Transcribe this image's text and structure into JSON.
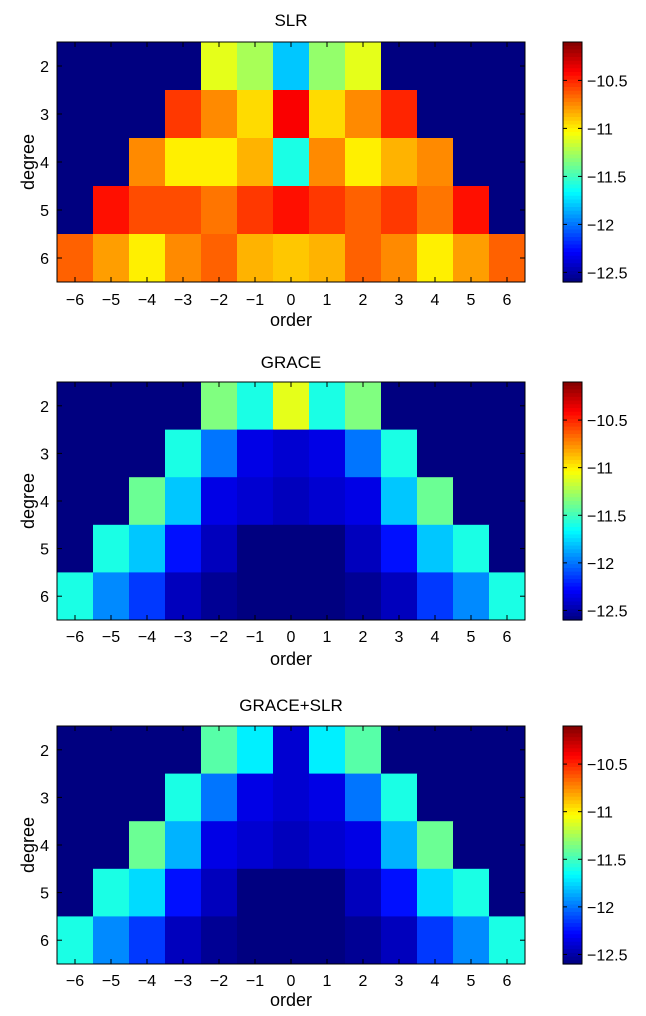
{
  "chart_data": [
    {
      "type": "heatmap",
      "title": "SLR",
      "xlabel": "order",
      "ylabel": "degree",
      "x_categories": [
        "−6",
        "−5",
        "−4",
        "−3",
        "−2",
        "−1",
        "0",
        "1",
        "2",
        "3",
        "4",
        "5",
        "6"
      ],
      "y_categories": [
        "2",
        "3",
        "4",
        "5",
        "6"
      ],
      "clim": [
        -12.6,
        -10.1
      ],
      "colorbar_ticks": [
        "−10.5",
        "−11",
        "−11.5",
        "−12",
        "−12.5"
      ],
      "values": [
        [
          -12.6,
          -12.6,
          -12.6,
          -12.6,
          -11.1,
          -11.25,
          -11.8,
          -11.3,
          -11.1,
          -12.6,
          -12.6,
          -12.6,
          -12.6
        ],
        [
          -12.6,
          -12.6,
          -12.6,
          -10.55,
          -10.75,
          -10.95,
          -10.4,
          -10.95,
          -10.75,
          -10.5,
          -12.6,
          -12.6,
          -12.6
        ],
        [
          -12.6,
          -12.6,
          -10.75,
          -11.0,
          -11.0,
          -10.85,
          -11.6,
          -10.75,
          -11.0,
          -10.85,
          -10.75,
          -12.6,
          -12.6
        ],
        [
          -12.6,
          -10.45,
          -10.6,
          -10.6,
          -10.7,
          -10.55,
          -10.45,
          -10.55,
          -10.65,
          -10.55,
          -10.7,
          -10.45,
          -12.6
        ],
        [
          -10.65,
          -10.8,
          -11.0,
          -10.75,
          -10.65,
          -10.85,
          -10.9,
          -10.85,
          -10.65,
          -10.75,
          -11.0,
          -10.8,
          -10.65
        ]
      ]
    },
    {
      "type": "heatmap",
      "title": "GRACE",
      "xlabel": "order",
      "ylabel": "degree",
      "x_categories": [
        "−6",
        "−5",
        "−4",
        "−3",
        "−2",
        "−1",
        "0",
        "1",
        "2",
        "3",
        "4",
        "5",
        "6"
      ],
      "y_categories": [
        "2",
        "3",
        "4",
        "5",
        "6"
      ],
      "clim": [
        -12.6,
        -10.1
      ],
      "colorbar_ticks": [
        "−10.5",
        "−11",
        "−11.5",
        "−12",
        "−12.5"
      ],
      "values": [
        [
          -12.6,
          -12.6,
          -12.6,
          -12.6,
          -11.35,
          -11.6,
          -11.1,
          -11.6,
          -11.35,
          -12.6,
          -12.6,
          -12.6,
          -12.6
        ],
        [
          -12.6,
          -12.6,
          -12.6,
          -11.6,
          -12.0,
          -12.35,
          -12.4,
          -12.35,
          -12.0,
          -11.6,
          -12.6,
          -12.6,
          -12.6
        ],
        [
          -12.6,
          -12.6,
          -11.4,
          -11.8,
          -12.35,
          -12.4,
          -12.45,
          -12.4,
          -12.35,
          -11.8,
          -11.4,
          -12.6,
          -12.6
        ],
        [
          -12.6,
          -11.6,
          -11.8,
          -12.25,
          -12.45,
          -12.6,
          -12.6,
          -12.6,
          -12.45,
          -12.25,
          -11.8,
          -11.6,
          -12.6
        ],
        [
          -11.6,
          -11.95,
          -12.15,
          -12.45,
          -12.55,
          -12.6,
          -12.6,
          -12.6,
          -12.55,
          -12.45,
          -12.15,
          -11.95,
          -11.6
        ]
      ]
    },
    {
      "type": "heatmap",
      "title": "GRACE+SLR",
      "xlabel": "order",
      "ylabel": "degree",
      "x_categories": [
        "−6",
        "−5",
        "−4",
        "−3",
        "−2",
        "−1",
        "0",
        "1",
        "2",
        "3",
        "4",
        "5",
        "6"
      ],
      "y_categories": [
        "2",
        "3",
        "4",
        "5",
        "6"
      ],
      "clim": [
        -12.6,
        -10.1
      ],
      "colorbar_ticks": [
        "−10.5",
        "−11",
        "−11.5",
        "−12",
        "−12.5"
      ],
      "values": [
        [
          -12.6,
          -12.6,
          -12.6,
          -12.6,
          -11.45,
          -11.7,
          -12.4,
          -11.7,
          -11.45,
          -12.6,
          -12.6,
          -12.6,
          -12.6
        ],
        [
          -12.6,
          -12.6,
          -12.6,
          -11.6,
          -12.0,
          -12.35,
          -12.4,
          -12.35,
          -12.0,
          -11.6,
          -12.6,
          -12.6,
          -12.6
        ],
        [
          -12.6,
          -12.6,
          -11.4,
          -11.85,
          -12.35,
          -12.4,
          -12.45,
          -12.4,
          -12.35,
          -11.85,
          -11.4,
          -12.6,
          -12.6
        ],
        [
          -12.6,
          -11.6,
          -11.75,
          -12.25,
          -12.45,
          -12.6,
          -12.6,
          -12.6,
          -12.45,
          -12.25,
          -11.75,
          -11.6,
          -12.6
        ],
        [
          -11.6,
          -11.95,
          -12.15,
          -12.45,
          -12.55,
          -12.6,
          -12.6,
          -12.6,
          -12.55,
          -12.45,
          -12.15,
          -11.95,
          -11.6
        ]
      ]
    }
  ]
}
